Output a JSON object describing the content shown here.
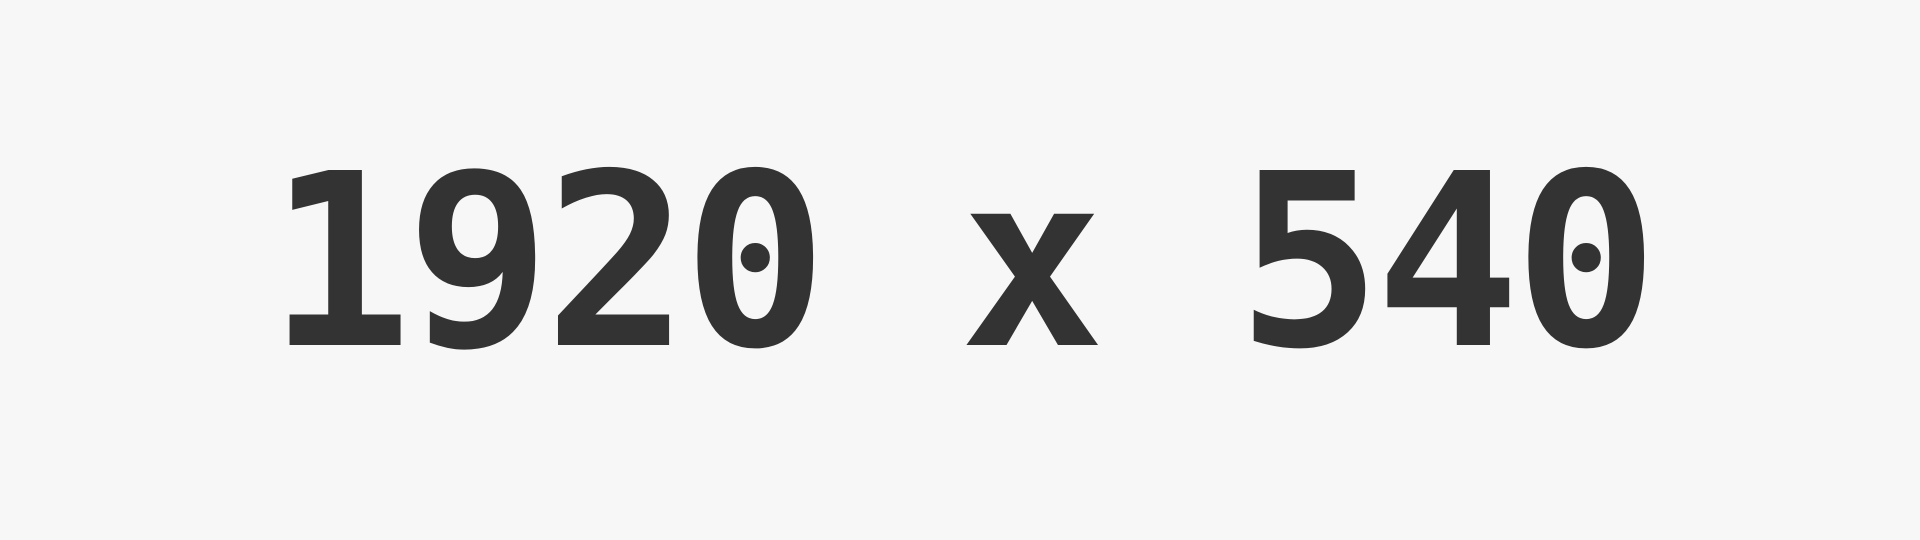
{
  "placeholder": {
    "label": "1920 x 540",
    "background_color": "#f7f7f7",
    "text_color": "#333333"
  }
}
